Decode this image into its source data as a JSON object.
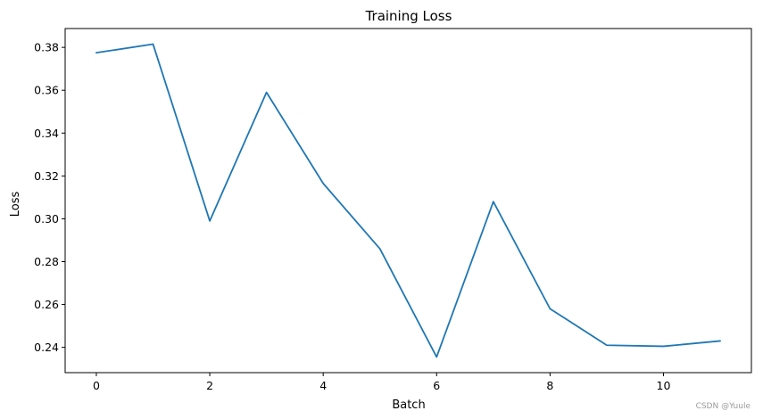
{
  "chart_data": {
    "type": "line",
    "title": "Training Loss",
    "xlabel": "Batch",
    "ylabel": "Loss",
    "x": [
      0,
      1,
      2,
      3,
      4,
      5,
      6,
      7,
      8,
      9,
      10,
      11
    ],
    "series": [
      {
        "values": [
          0.3775,
          0.3815,
          0.299,
          0.359,
          0.3165,
          0.286,
          0.2355,
          0.308,
          0.258,
          0.241,
          0.2405,
          0.243
        ],
        "color": "#1f77b4"
      }
    ],
    "xticks": [
      0,
      2,
      4,
      6,
      8,
      10
    ],
    "yticks": [
      0.24,
      0.26,
      0.28,
      0.3,
      0.32,
      0.34,
      0.36,
      0.38
    ],
    "xtick_labels": [
      "0",
      "2",
      "4",
      "6",
      "8",
      "10"
    ],
    "ytick_labels": [
      "0.24",
      "0.26",
      "0.28",
      "0.30",
      "0.32",
      "0.34",
      "0.36",
      "0.38"
    ],
    "xlim": [
      -0.55,
      11.55
    ],
    "ylim": [
      0.2282,
      0.3888
    ],
    "grid": false,
    "legend": "none"
  },
  "watermark": "CSDN @Yuule"
}
